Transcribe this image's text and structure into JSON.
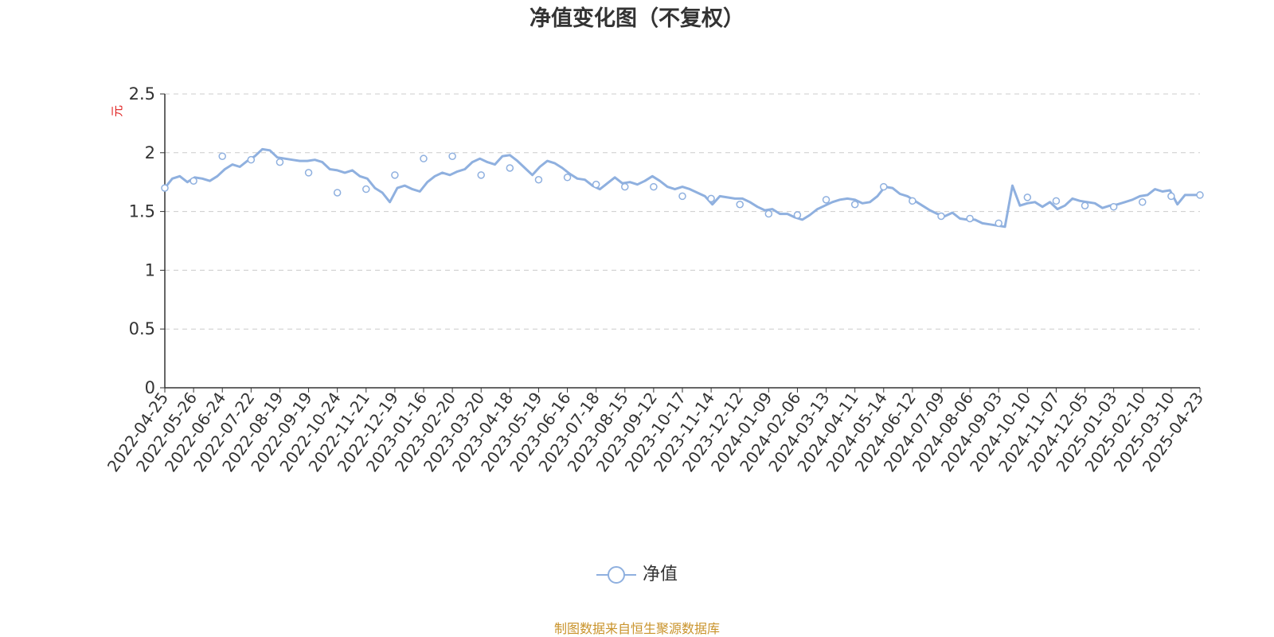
{
  "source_note": "制图数据来自恒生聚源数据库",
  "colors": {
    "line": "#8fb0df",
    "title": "#333333",
    "ylabel": "#e02020",
    "source": "#c9932b",
    "grid": "#cccccc"
  },
  "chart_data": {
    "type": "line",
    "title": "净值变化图（不复权）",
    "ylabel": "元",
    "xlabel": "",
    "ylim": [
      0,
      2.5
    ],
    "y_ticks": [
      "0",
      "0.5",
      "1",
      "1.5",
      "2",
      "2.5"
    ],
    "grid": true,
    "legend_position": "bottom-center",
    "categories": [
      "2022-04-25",
      "2022-05-26",
      "2022-06-24",
      "2022-07-22",
      "2022-08-19",
      "2022-09-19",
      "2022-10-24",
      "2022-11-21",
      "2022-12-19",
      "2023-01-16",
      "2023-02-20",
      "2023-03-20",
      "2023-04-18",
      "2023-05-19",
      "2023-06-16",
      "2023-07-18",
      "2023-08-15",
      "2023-09-12",
      "2023-10-17",
      "2023-11-14",
      "2023-12-12",
      "2024-01-09",
      "2024-02-06",
      "2024-03-13",
      "2024-04-11",
      "2024-05-14",
      "2024-06-12",
      "2024-07-09",
      "2024-08-06",
      "2024-09-03",
      "2024-10-10",
      "2024-11-07",
      "2024-12-05",
      "2025-01-03",
      "2025-02-10",
      "2025-03-10",
      "2025-04-23"
    ],
    "series": [
      {
        "name": "净值",
        "values": [
          1.7,
          1.76,
          1.97,
          1.94,
          1.92,
          1.83,
          1.66,
          1.69,
          1.81,
          1.95,
          1.97,
          1.81,
          1.87,
          1.77,
          1.79,
          1.73,
          1.71,
          1.71,
          1.63,
          1.61,
          1.56,
          1.48,
          1.47,
          1.6,
          1.56,
          1.71,
          1.59,
          1.46,
          1.44,
          1.4,
          1.62,
          1.59,
          1.55,
          1.54,
          1.58,
          1.63,
          1.64
        ],
        "detail": [
          1.7,
          1.78,
          1.8,
          1.75,
          1.79,
          1.78,
          1.76,
          1.8,
          1.86,
          1.9,
          1.88,
          1.93,
          1.97,
          2.03,
          2.02,
          1.96,
          1.95,
          1.94,
          1.93,
          1.93,
          1.94,
          1.92,
          1.86,
          1.85,
          1.83,
          1.85,
          1.8,
          1.78,
          1.7,
          1.66,
          1.58,
          1.7,
          1.72,
          1.69,
          1.67,
          1.75,
          1.8,
          1.83,
          1.81,
          1.84,
          1.86,
          1.92,
          1.95,
          1.92,
          1.9,
          1.97,
          1.98,
          1.93,
          1.87,
          1.81,
          1.88,
          1.93,
          1.91,
          1.87,
          1.82,
          1.78,
          1.77,
          1.72,
          1.69,
          1.74,
          1.79,
          1.74,
          1.75,
          1.73,
          1.76,
          1.8,
          1.76,
          1.71,
          1.69,
          1.71,
          1.69,
          1.66,
          1.63,
          1.56,
          1.63,
          1.62,
          1.61,
          1.61,
          1.58,
          1.54,
          1.51,
          1.52,
          1.48,
          1.48,
          1.45,
          1.43,
          1.47,
          1.52,
          1.55,
          1.58,
          1.6,
          1.61,
          1.6,
          1.57,
          1.58,
          1.63,
          1.71,
          1.7,
          1.65,
          1.63,
          1.59,
          1.55,
          1.51,
          1.48,
          1.46,
          1.49,
          1.44,
          1.43,
          1.43,
          1.4,
          1.39,
          1.38,
          1.37,
          1.72,
          1.55,
          1.57,
          1.58,
          1.54,
          1.58,
          1.52,
          1.55,
          1.61,
          1.59,
          1.58,
          1.57,
          1.53,
          1.55,
          1.56,
          1.58,
          1.6,
          1.63,
          1.64,
          1.69,
          1.67,
          1.68,
          1.56,
          1.64,
          1.64,
          1.64
        ]
      }
    ]
  }
}
